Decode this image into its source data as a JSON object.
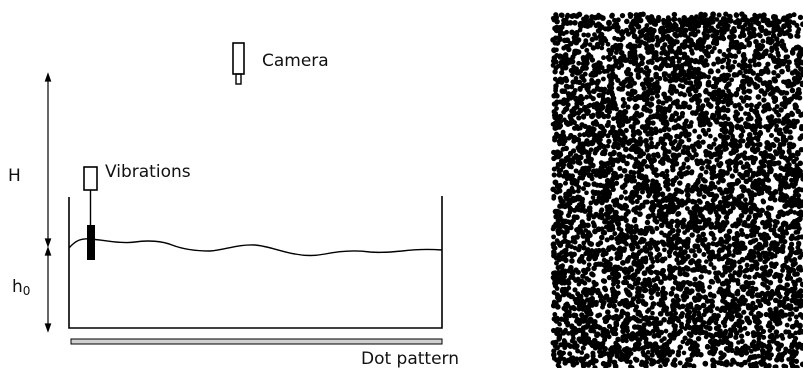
{
  "labels": {
    "camera": "Camera",
    "vibrations": "Vibrations",
    "height": "H",
    "depth_main": "h",
    "depth_sub": "0",
    "dot_pattern": "Dot pattern"
  },
  "colors": {
    "line": "#000000",
    "pattern_dot": "#000000",
    "plate": "#cfcfcf"
  }
}
